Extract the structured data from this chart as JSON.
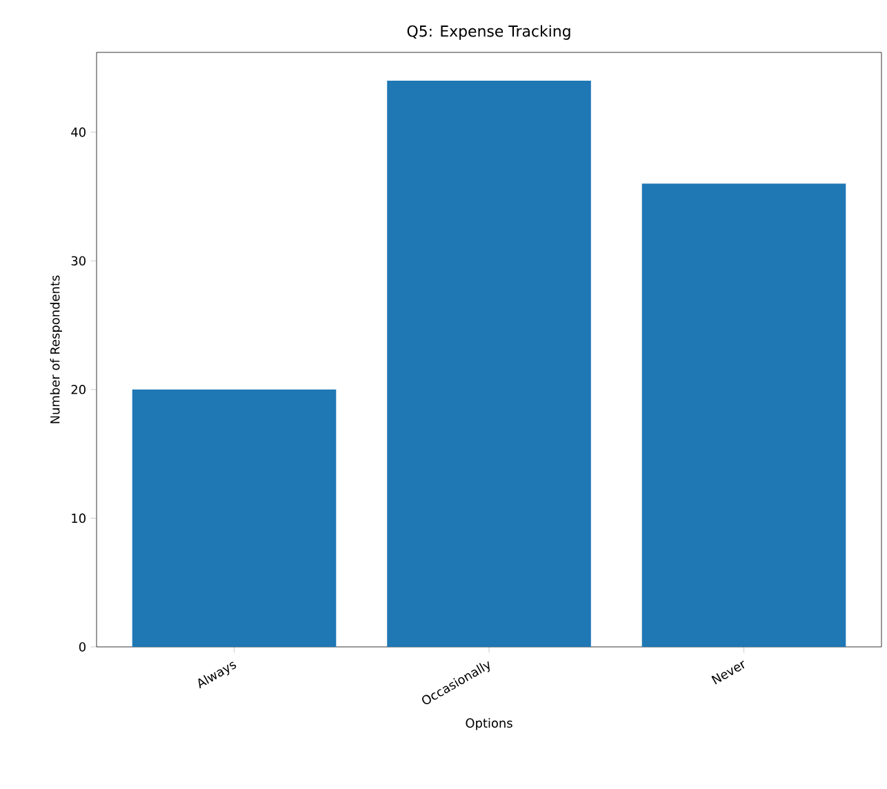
{
  "chart_data": {
    "type": "bar",
    "title": "Q5: Expense Tracking",
    "xlabel": "Options",
    "ylabel": "Number of Respondents",
    "categories": [
      "Always",
      "Occasionally",
      "Never"
    ],
    "values": [
      20,
      44,
      36
    ],
    "color": "#1f77b4",
    "ylim": [
      0,
      46.2
    ],
    "yticks": [
      0,
      10,
      20,
      30,
      40
    ]
  }
}
